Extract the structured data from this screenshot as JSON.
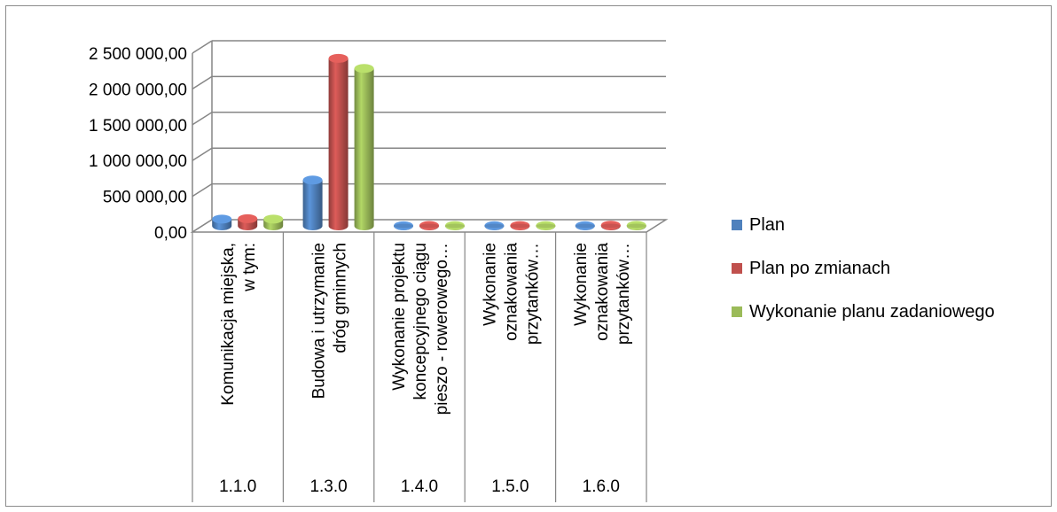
{
  "chart_data": {
    "type": "bar",
    "style": "3d-cylinder",
    "categories": [
      {
        "code": "1.1.0",
        "label_lines": [
          "Komunikacja miejska,",
          "w tym:"
        ]
      },
      {
        "code": "1.3.0",
        "label_lines": [
          "Budowa i utrzymanie",
          "dróg gminnych"
        ]
      },
      {
        "code": "1.4.0",
        "label_lines": [
          "Wykonanie projektu",
          "koncepcyjnego ciągu",
          "pieszo - rowerowego…"
        ]
      },
      {
        "code": "1.5.0",
        "label_lines": [
          "Wykonanie",
          "oznakowania",
          "przytanków…"
        ]
      },
      {
        "code": "1.6.0",
        "label_lines": [
          "Wykonanie",
          "oznakowania",
          "przytanków…"
        ]
      }
    ],
    "series": [
      {
        "name": "Plan",
        "color": "#4f81bd",
        "values": [
          95000,
          640000,
          2000,
          3000,
          3000
        ]
      },
      {
        "name": "Plan po zmianach",
        "color": "#c0504d",
        "values": [
          100000,
          2340000,
          6000,
          5000,
          10000
        ]
      },
      {
        "name": "Wykonanie planu zadaniowego",
        "color": "#9bbb59",
        "values": [
          95000,
          2200000,
          4000,
          4000,
          8000
        ]
      }
    ],
    "yticks": [
      "0,00",
      "500 000,00",
      "1 000 000,00",
      "1 500 000,00",
      "2 000 000,00",
      "2 500 000,00"
    ],
    "ylim": [
      0,
      2500000
    ],
    "grid": true,
    "legend_position": "right"
  }
}
